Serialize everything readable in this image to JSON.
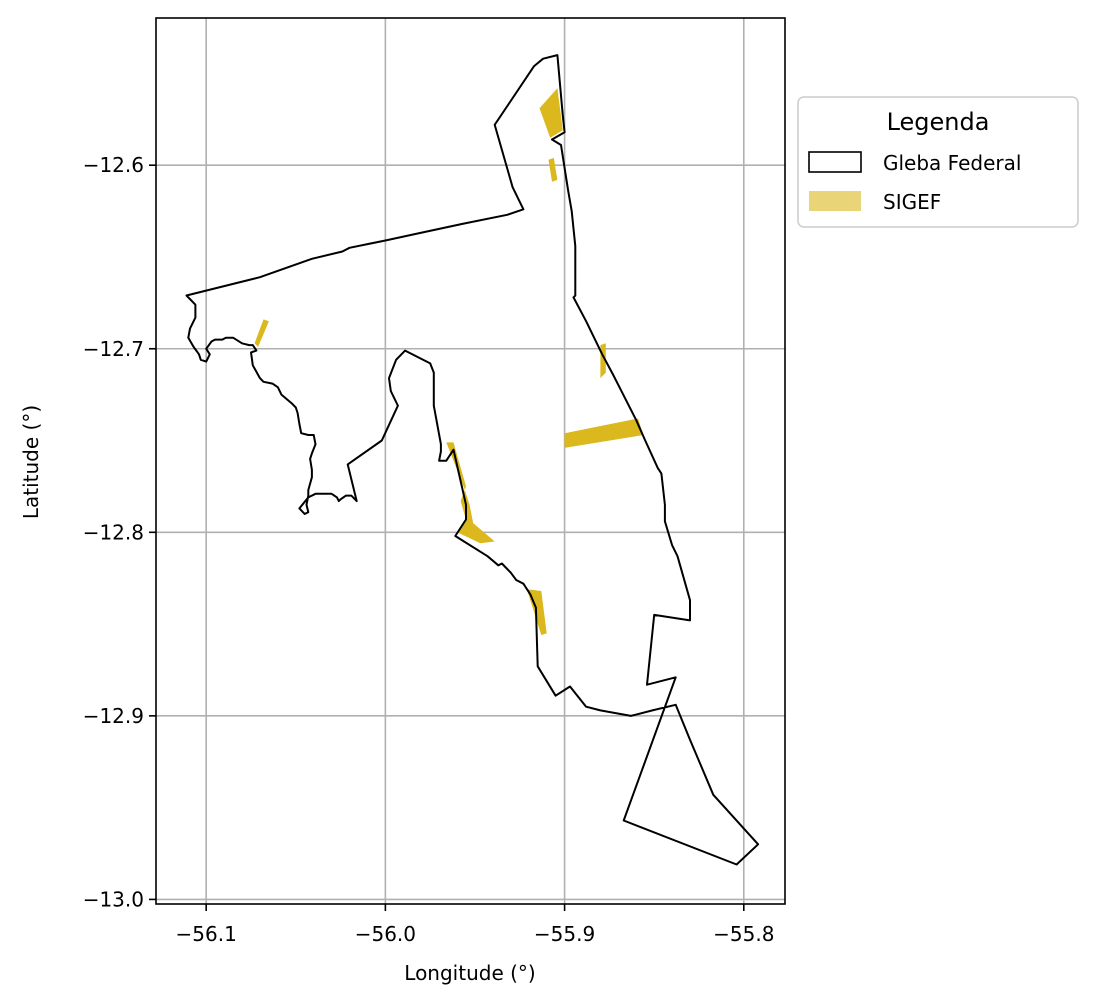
{
  "chart_data": {
    "type": "map",
    "xlabel": "Longitude (°)",
    "ylabel": "Latitude (°)",
    "xlim": [
      -56.128,
      -55.777
    ],
    "ylim": [
      -13.0025,
      -12.5198
    ],
    "grid": true,
    "xticks": [
      -56.1,
      -56.0,
      -55.9,
      -55.8
    ],
    "xtick_labels": [
      "−56.1",
      "−56.0",
      "−55.9",
      "−55.8"
    ],
    "yticks": [
      -12.6,
      -12.7,
      -12.8,
      -12.9,
      -13.0
    ],
    "ytick_labels": [
      "−12.6",
      "−12.7",
      "−12.8",
      "−12.9",
      "−13.0"
    ],
    "legend": {
      "title": "Legenda",
      "placement": "outside-upper-right",
      "entries": [
        {
          "label": "Gleba Federal",
          "style": "outline",
          "color": "#000000"
        },
        {
          "label": "SIGEF",
          "style": "fill",
          "color": "#dbb81e"
        }
      ]
    },
    "series": [
      {
        "name": "Gleba Federal",
        "kind": "polygon",
        "stroke": "#000000",
        "coords": [
          [
            -55.904,
            -12.54
          ],
          [
            -55.912,
            -12.542
          ],
          [
            -55.917,
            -12.546
          ],
          [
            -55.939,
            -12.578
          ],
          [
            -55.929,
            -12.612
          ],
          [
            -55.923,
            -12.624
          ],
          [
            -55.932,
            -12.627
          ],
          [
            -55.957,
            -12.632
          ],
          [
            -55.981,
            -12.637
          ],
          [
            -56.0,
            -12.641
          ],
          [
            -56.01,
            -12.643
          ],
          [
            -56.02,
            -12.645
          ],
          [
            -56.022,
            -12.646
          ],
          [
            -56.024,
            -12.647
          ],
          [
            -56.041,
            -12.651
          ],
          [
            -56.07,
            -12.661
          ],
          [
            -56.111,
            -12.671
          ],
          [
            -56.106,
            -12.676
          ],
          [
            -56.106,
            -12.683
          ],
          [
            -56.109,
            -12.689
          ],
          [
            -56.11,
            -12.694
          ],
          [
            -56.107,
            -12.699
          ],
          [
            -56.104,
            -12.703
          ],
          [
            -56.103,
            -12.706
          ],
          [
            -56.1,
            -12.707
          ],
          [
            -56.098,
            -12.703
          ],
          [
            -56.1,
            -12.7
          ],
          [
            -56.097,
            -12.696
          ],
          [
            -56.095,
            -12.695
          ],
          [
            -56.091,
            -12.695
          ],
          [
            -56.089,
            -12.694
          ],
          [
            -56.085,
            -12.694
          ],
          [
            -56.08,
            -12.697
          ],
          [
            -56.076,
            -12.698
          ],
          [
            -56.074,
            -12.698
          ],
          [
            -56.072,
            -12.701
          ],
          [
            -56.075,
            -12.702
          ],
          [
            -56.074,
            -12.709
          ],
          [
            -56.07,
            -12.716
          ],
          [
            -56.068,
            -12.718
          ],
          [
            -56.063,
            -12.719
          ],
          [
            -56.06,
            -12.721
          ],
          [
            -56.058,
            -12.725
          ],
          [
            -56.052,
            -12.73
          ],
          [
            -56.05,
            -12.732
          ],
          [
            -56.049,
            -12.735
          ],
          [
            -56.048,
            -12.741
          ],
          [
            -56.047,
            -12.746
          ],
          [
            -56.043,
            -12.747
          ],
          [
            -56.04,
            -12.747
          ],
          [
            -56.039,
            -12.752
          ],
          [
            -56.041,
            -12.757
          ],
          [
            -56.042,
            -12.76
          ],
          [
            -56.041,
            -12.766
          ],
          [
            -56.041,
            -12.77
          ],
          [
            -56.043,
            -12.777
          ],
          [
            -56.043,
            -12.78
          ],
          [
            -56.044,
            -12.785
          ],
          [
            -56.043,
            -12.789
          ],
          [
            -56.045,
            -12.79
          ],
          [
            -56.048,
            -12.787
          ],
          [
            -56.043,
            -12.781
          ],
          [
            -56.039,
            -12.779
          ],
          [
            -56.034,
            -12.779
          ],
          [
            -56.03,
            -12.779
          ],
          [
            -56.027,
            -12.781
          ],
          [
            -56.026,
            -12.783
          ],
          [
            -56.025,
            -12.782
          ],
          [
            -56.022,
            -12.78
          ],
          [
            -56.019,
            -12.78
          ],
          [
            -56.016,
            -12.783
          ],
          [
            -56.021,
            -12.763
          ],
          [
            -56.002,
            -12.75
          ],
          [
            -55.993,
            -12.731
          ],
          [
            -55.997,
            -12.723
          ],
          [
            -55.998,
            -12.716
          ],
          [
            -55.994,
            -12.706
          ],
          [
            -55.989,
            -12.701
          ],
          [
            -55.975,
            -12.708
          ],
          [
            -55.973,
            -12.713
          ],
          [
            -55.973,
            -12.731
          ],
          [
            -55.969,
            -12.752
          ],
          [
            -55.969,
            -12.756
          ],
          [
            -55.97,
            -12.761
          ],
          [
            -55.966,
            -12.761
          ],
          [
            -55.962,
            -12.755
          ],
          [
            -55.955,
            -12.785
          ],
          [
            -55.955,
            -12.793
          ],
          [
            -55.961,
            -12.802
          ],
          [
            -55.943,
            -12.813
          ],
          [
            -55.937,
            -12.818
          ],
          [
            -55.935,
            -12.817
          ],
          [
            -55.932,
            -12.82
          ],
          [
            -55.93,
            -12.822
          ],
          [
            -55.927,
            -12.826
          ],
          [
            -55.923,
            -12.828
          ],
          [
            -55.919,
            -12.834
          ],
          [
            -55.916,
            -12.841
          ],
          [
            -55.915,
            -12.873
          ],
          [
            -55.905,
            -12.889
          ],
          [
            -55.897,
            -12.884
          ],
          [
            -55.888,
            -12.895
          ],
          [
            -55.88,
            -12.897
          ],
          [
            -55.863,
            -12.9
          ],
          [
            -55.851,
            -12.897
          ],
          [
            -55.838,
            -12.894
          ],
          [
            -55.83,
            -12.913
          ],
          [
            -55.817,
            -12.943
          ],
          [
            -55.792,
            -12.97
          ],
          [
            -55.804,
            -12.981
          ],
          [
            -55.867,
            -12.957
          ],
          [
            -55.838,
            -12.879
          ],
          [
            -55.854,
            -12.883
          ],
          [
            -55.85,
            -12.845
          ],
          [
            -55.83,
            -12.848
          ],
          [
            -55.83,
            -12.837
          ],
          [
            -55.837,
            -12.813
          ],
          [
            -55.84,
            -12.807
          ],
          [
            -55.844,
            -12.794
          ],
          [
            -55.844,
            -12.785
          ],
          [
            -55.846,
            -12.768
          ],
          [
            -55.848,
            -12.765
          ],
          [
            -55.855,
            -12.75
          ],
          [
            -55.86,
            -12.739
          ],
          [
            -55.873,
            -12.714
          ],
          [
            -55.879,
            -12.703
          ],
          [
            -55.888,
            -12.685
          ],
          [
            -55.895,
            -12.672
          ],
          [
            -55.894,
            -12.671
          ],
          [
            -55.894,
            -12.644
          ],
          [
            -55.896,
            -12.625
          ],
          [
            -55.898,
            -12.614
          ],
          [
            -55.902,
            -12.589
          ],
          [
            -55.907,
            -12.586
          ],
          [
            -55.9,
            -12.582
          ],
          [
            -55.901,
            -12.573
          ],
          [
            -55.904,
            -12.54
          ]
        ]
      },
      {
        "name": "SIGEF",
        "kind": "polygons",
        "fill": "#dbb81e",
        "parcels": [
          [
            [
              -55.914,
              -12.569
            ],
            [
              -55.904,
              -12.558
            ],
            [
              -55.901,
              -12.581
            ],
            [
              -55.908,
              -12.585
            ]
          ],
          [
            [
              -55.909,
              -12.597
            ],
            [
              -55.906,
              -12.596
            ],
            [
              -55.904,
              -12.608
            ],
            [
              -55.907,
              -12.609
            ]
          ],
          [
            [
              -56.073,
              -12.697
            ],
            [
              -56.068,
              -12.684
            ],
            [
              -56.065,
              -12.685
            ],
            [
              -56.071,
              -12.699
            ]
          ],
          [
            [
              -55.88,
              -12.698
            ],
            [
              -55.877,
              -12.697
            ],
            [
              -55.877,
              -12.713
            ],
            [
              -55.88,
              -12.716
            ]
          ],
          [
            [
              -55.9,
              -12.746
            ],
            [
              -55.859,
              -12.738
            ],
            [
              -55.856,
              -12.747
            ],
            [
              -55.9,
              -12.754
            ]
          ],
          [
            [
              -55.966,
              -12.751
            ],
            [
              -55.962,
              -12.751
            ],
            [
              -55.955,
              -12.775
            ],
            [
              -55.958,
              -12.783
            ],
            [
              -55.955,
              -12.793
            ],
            [
              -55.96,
              -12.8
            ],
            [
              -55.947,
              -12.806
            ],
            [
              -55.939,
              -12.805
            ],
            [
              -55.951,
              -12.795
            ],
            [
              -55.953,
              -12.785
            ],
            [
              -55.956,
              -12.776
            ]
          ],
          [
            [
              -55.921,
              -12.831
            ],
            [
              -55.913,
              -12.856
            ],
            [
              -55.91,
              -12.855
            ],
            [
              -55.913,
              -12.832
            ]
          ]
        ]
      }
    ]
  }
}
